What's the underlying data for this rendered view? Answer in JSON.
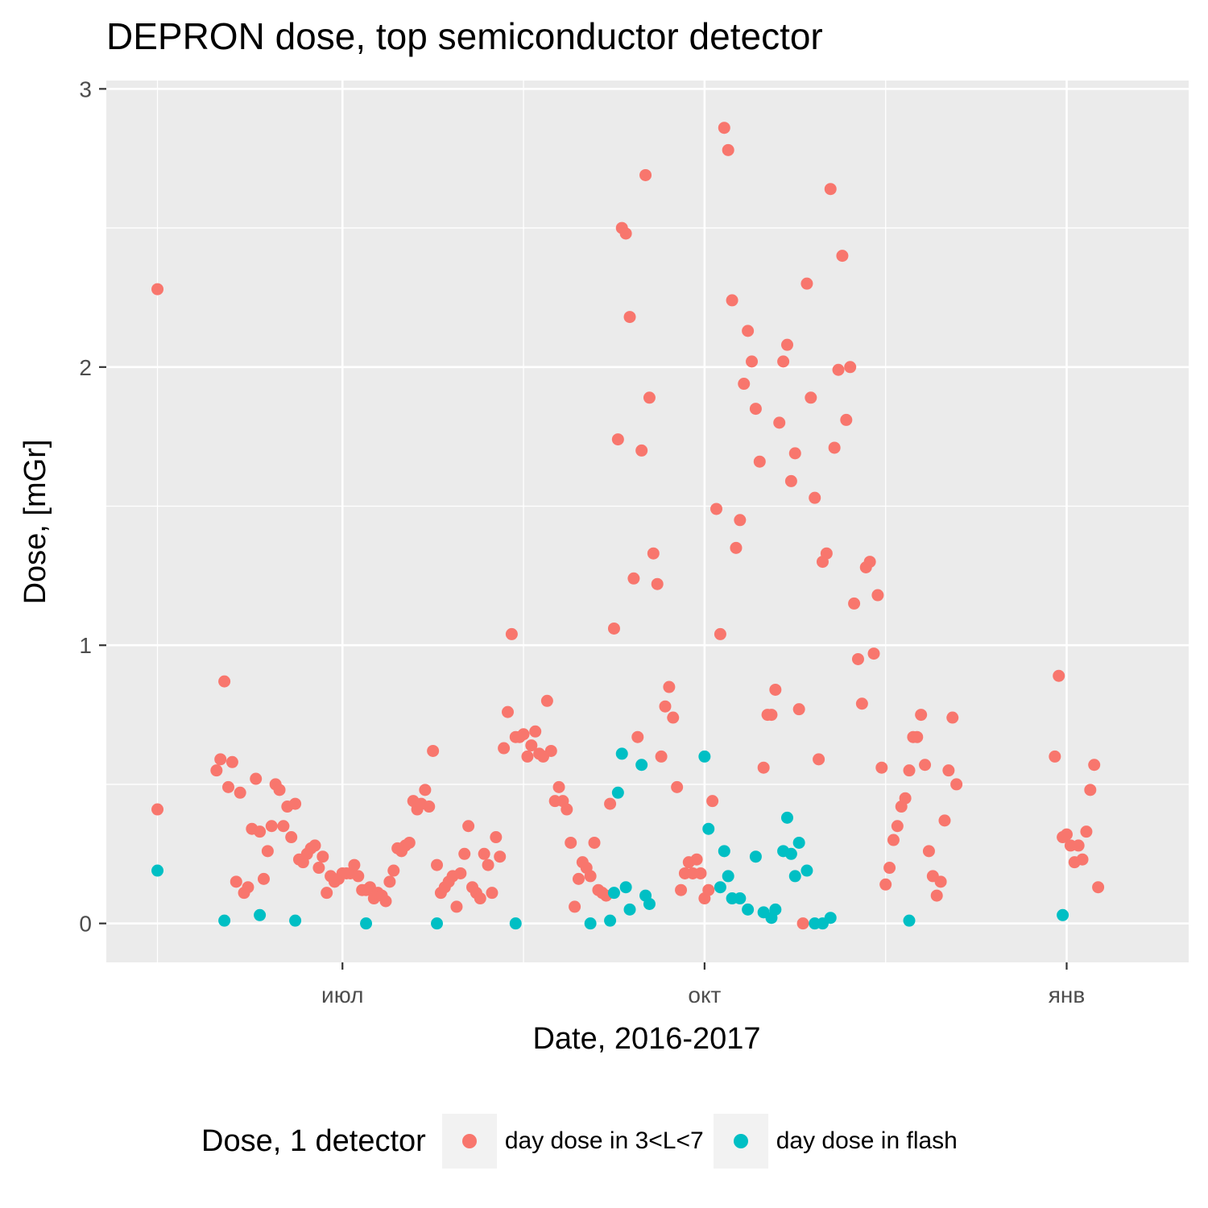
{
  "chart_data": {
    "type": "scatter",
    "title": "DEPRON dose, top semiconductor detector",
    "xlabel": "Date, 2016-2017",
    "ylabel": "Dose, [mGr]",
    "xlim": [
      "2016-05-02",
      "2017-02-01"
    ],
    "ylim": [
      -0.14,
      3.03
    ],
    "x_ticks": [
      {
        "date": "2016-07-01",
        "label": "июл"
      },
      {
        "date": "2016-10-01",
        "label": "окт"
      },
      {
        "date": "2017-01-01",
        "label": "янв"
      }
    ],
    "x_minor_ticks": [
      "2016-05-15",
      "2016-08-16",
      "2016-11-16"
    ],
    "y_ticks": [
      0,
      1,
      2,
      3
    ],
    "y_minor_ticks": [
      0.5,
      1.5,
      2.5
    ],
    "grid": true,
    "legend": {
      "title": "Dose, 1 detector",
      "position": "bottom"
    },
    "series": [
      {
        "name": "day dose in 3<L<7",
        "color": "#F8766D",
        "points": [
          [
            "2016-05-15",
            2.28
          ],
          [
            "2016-05-15",
            0.41
          ],
          [
            "2016-05-30",
            0.55
          ],
          [
            "2016-05-31",
            0.59
          ],
          [
            "2016-06-01",
            0.87
          ],
          [
            "2016-06-02",
            0.49
          ],
          [
            "2016-06-03",
            0.58
          ],
          [
            "2016-06-04",
            0.15
          ],
          [
            "2016-06-05",
            0.47
          ],
          [
            "2016-06-06",
            0.11
          ],
          [
            "2016-06-07",
            0.13
          ],
          [
            "2016-06-08",
            0.34
          ],
          [
            "2016-06-09",
            0.52
          ],
          [
            "2016-06-10",
            0.33
          ],
          [
            "2016-06-11",
            0.16
          ],
          [
            "2016-06-12",
            0.26
          ],
          [
            "2016-06-13",
            0.35
          ],
          [
            "2016-06-14",
            0.5
          ],
          [
            "2016-06-15",
            0.48
          ],
          [
            "2016-06-16",
            0.35
          ],
          [
            "2016-06-17",
            0.42
          ],
          [
            "2016-06-18",
            0.31
          ],
          [
            "2016-06-19",
            0.43
          ],
          [
            "2016-06-20",
            0.23
          ],
          [
            "2016-06-21",
            0.22
          ],
          [
            "2016-06-22",
            0.25
          ],
          [
            "2016-06-23",
            0.27
          ],
          [
            "2016-06-24",
            0.28
          ],
          [
            "2016-06-25",
            0.2
          ],
          [
            "2016-06-26",
            0.24
          ],
          [
            "2016-06-27",
            0.11
          ],
          [
            "2016-06-28",
            0.17
          ],
          [
            "2016-06-29",
            0.15
          ],
          [
            "2016-06-30",
            0.16
          ],
          [
            "2016-07-01",
            0.18
          ],
          [
            "2016-07-02",
            0.18
          ],
          [
            "2016-07-03",
            0.18
          ],
          [
            "2016-07-04",
            0.21
          ],
          [
            "2016-07-05",
            0.17
          ],
          [
            "2016-07-06",
            0.12
          ],
          [
            "2016-07-07",
            0.12
          ],
          [
            "2016-07-08",
            0.13
          ],
          [
            "2016-07-09",
            0.09
          ],
          [
            "2016-07-10",
            0.11
          ],
          [
            "2016-07-11",
            0.1
          ],
          [
            "2016-07-12",
            0.08
          ],
          [
            "2016-07-13",
            0.15
          ],
          [
            "2016-07-14",
            0.19
          ],
          [
            "2016-07-15",
            0.27
          ],
          [
            "2016-07-16",
            0.26
          ],
          [
            "2016-07-17",
            0.28
          ],
          [
            "2016-07-18",
            0.29
          ],
          [
            "2016-07-19",
            0.44
          ],
          [
            "2016-07-20",
            0.41
          ],
          [
            "2016-07-21",
            0.43
          ],
          [
            "2016-07-22",
            0.48
          ],
          [
            "2016-07-23",
            0.42
          ],
          [
            "2016-07-24",
            0.62
          ],
          [
            "2016-07-25",
            0.21
          ],
          [
            "2016-07-26",
            0.11
          ],
          [
            "2016-07-27",
            0.13
          ],
          [
            "2016-07-28",
            0.15
          ],
          [
            "2016-07-29",
            0.17
          ],
          [
            "2016-07-30",
            0.06
          ],
          [
            "2016-07-31",
            0.18
          ],
          [
            "2016-08-01",
            0.25
          ],
          [
            "2016-08-02",
            0.35
          ],
          [
            "2016-08-03",
            0.13
          ],
          [
            "2016-08-04",
            0.11
          ],
          [
            "2016-08-05",
            0.09
          ],
          [
            "2016-08-06",
            0.25
          ],
          [
            "2016-08-07",
            0.21
          ],
          [
            "2016-08-08",
            0.11
          ],
          [
            "2016-08-09",
            0.31
          ],
          [
            "2016-08-10",
            0.24
          ],
          [
            "2016-08-11",
            0.63
          ],
          [
            "2016-08-12",
            0.76
          ],
          [
            "2016-08-13",
            1.04
          ],
          [
            "2016-08-14",
            0.67
          ],
          [
            "2016-08-15",
            0.67
          ],
          [
            "2016-08-16",
            0.68
          ],
          [
            "2016-08-17",
            0.6
          ],
          [
            "2016-08-18",
            0.64
          ],
          [
            "2016-08-19",
            0.69
          ],
          [
            "2016-08-20",
            0.61
          ],
          [
            "2016-08-21",
            0.6
          ],
          [
            "2016-08-22",
            0.8
          ],
          [
            "2016-08-23",
            0.62
          ],
          [
            "2016-08-24",
            0.44
          ],
          [
            "2016-08-25",
            0.49
          ],
          [
            "2016-08-26",
            0.44
          ],
          [
            "2016-08-27",
            0.41
          ],
          [
            "2016-08-28",
            0.29
          ],
          [
            "2016-08-29",
            0.06
          ],
          [
            "2016-08-30",
            0.16
          ],
          [
            "2016-08-31",
            0.22
          ],
          [
            "2016-09-01",
            0.2
          ],
          [
            "2016-09-02",
            0.17
          ],
          [
            "2016-09-03",
            0.29
          ],
          [
            "2016-09-04",
            0.12
          ],
          [
            "2016-09-05",
            0.11
          ],
          [
            "2016-09-06",
            0.1
          ],
          [
            "2016-09-07",
            0.43
          ],
          [
            "2016-09-08",
            1.06
          ],
          [
            "2016-09-09",
            1.74
          ],
          [
            "2016-09-10",
            2.5
          ],
          [
            "2016-09-11",
            2.48
          ],
          [
            "2016-09-12",
            2.18
          ],
          [
            "2016-09-13",
            1.24
          ],
          [
            "2016-09-14",
            0.67
          ],
          [
            "2016-09-15",
            1.7
          ],
          [
            "2016-09-16",
            2.69
          ],
          [
            "2016-09-17",
            1.89
          ],
          [
            "2016-09-18",
            1.33
          ],
          [
            "2016-09-19",
            1.22
          ],
          [
            "2016-09-20",
            0.6
          ],
          [
            "2016-09-21",
            0.78
          ],
          [
            "2016-09-22",
            0.85
          ],
          [
            "2016-09-23",
            0.74
          ],
          [
            "2016-09-24",
            0.49
          ],
          [
            "2016-09-25",
            0.12
          ],
          [
            "2016-09-26",
            0.18
          ],
          [
            "2016-09-27",
            0.22
          ],
          [
            "2016-09-28",
            0.18
          ],
          [
            "2016-09-29",
            0.23
          ],
          [
            "2016-09-30",
            0.18
          ],
          [
            "2016-10-01",
            0.09
          ],
          [
            "2016-10-02",
            0.12
          ],
          [
            "2016-10-03",
            0.44
          ],
          [
            "2016-10-04",
            1.49
          ],
          [
            "2016-10-05",
            1.04
          ],
          [
            "2016-10-06",
            2.86
          ],
          [
            "2016-10-07",
            2.78
          ],
          [
            "2016-10-08",
            2.24
          ],
          [
            "2016-10-09",
            1.35
          ],
          [
            "2016-10-10",
            1.45
          ],
          [
            "2016-10-11",
            1.94
          ],
          [
            "2016-10-12",
            2.13
          ],
          [
            "2016-10-13",
            2.02
          ],
          [
            "2016-10-14",
            1.85
          ],
          [
            "2016-10-15",
            1.66
          ],
          [
            "2016-10-16",
            0.56
          ],
          [
            "2016-10-17",
            0.75
          ],
          [
            "2016-10-18",
            0.75
          ],
          [
            "2016-10-19",
            0.84
          ],
          [
            "2016-10-20",
            1.8
          ],
          [
            "2016-10-21",
            2.02
          ],
          [
            "2016-10-22",
            2.08
          ],
          [
            "2016-10-23",
            1.59
          ],
          [
            "2016-10-24",
            1.69
          ],
          [
            "2016-10-25",
            0.77
          ],
          [
            "2016-10-26",
            0.0
          ],
          [
            "2016-10-27",
            2.3
          ],
          [
            "2016-10-28",
            1.89
          ],
          [
            "2016-10-29",
            1.53
          ],
          [
            "2016-10-30",
            0.59
          ],
          [
            "2016-10-31",
            1.3
          ],
          [
            "2016-11-01",
            1.33
          ],
          [
            "2016-11-02",
            2.64
          ],
          [
            "2016-11-03",
            1.71
          ],
          [
            "2016-11-04",
            1.99
          ],
          [
            "2016-11-05",
            2.4
          ],
          [
            "2016-11-06",
            1.81
          ],
          [
            "2016-11-07",
            2.0
          ],
          [
            "2016-11-08",
            1.15
          ],
          [
            "2016-11-09",
            0.95
          ],
          [
            "2016-11-10",
            0.79
          ],
          [
            "2016-11-11",
            1.28
          ],
          [
            "2016-11-12",
            1.3
          ],
          [
            "2016-11-13",
            0.97
          ],
          [
            "2016-11-14",
            1.18
          ],
          [
            "2016-11-15",
            0.56
          ],
          [
            "2016-11-16",
            0.14
          ],
          [
            "2016-11-17",
            0.2
          ],
          [
            "2016-11-18",
            0.3
          ],
          [
            "2016-11-19",
            0.35
          ],
          [
            "2016-11-20",
            0.42
          ],
          [
            "2016-11-21",
            0.45
          ],
          [
            "2016-11-22",
            0.55
          ],
          [
            "2016-11-23",
            0.67
          ],
          [
            "2016-11-24",
            0.67
          ],
          [
            "2016-11-25",
            0.75
          ],
          [
            "2016-11-26",
            0.57
          ],
          [
            "2016-11-27",
            0.26
          ],
          [
            "2016-11-28",
            0.17
          ],
          [
            "2016-11-29",
            0.1
          ],
          [
            "2016-11-30",
            0.15
          ],
          [
            "2016-12-01",
            0.37
          ],
          [
            "2016-12-02",
            0.55
          ],
          [
            "2016-12-03",
            0.74
          ],
          [
            "2016-12-04",
            0.5
          ],
          [
            "2016-12-29",
            0.6
          ],
          [
            "2016-12-30",
            0.89
          ],
          [
            "2016-12-31",
            0.31
          ],
          [
            "2017-01-01",
            0.32
          ],
          [
            "2017-01-02",
            0.28
          ],
          [
            "2017-01-03",
            0.22
          ],
          [
            "2017-01-04",
            0.28
          ],
          [
            "2017-01-05",
            0.23
          ],
          [
            "2017-01-06",
            0.33
          ],
          [
            "2017-01-07",
            0.48
          ],
          [
            "2017-01-08",
            0.57
          ],
          [
            "2017-01-09",
            0.13
          ]
        ]
      },
      {
        "name": "day dose in flash",
        "color": "#00BFC4",
        "points": [
          [
            "2016-05-15",
            0.19
          ],
          [
            "2016-06-01",
            0.01
          ],
          [
            "2016-06-10",
            0.03
          ],
          [
            "2016-06-19",
            0.01
          ],
          [
            "2016-07-07",
            0.0
          ],
          [
            "2016-07-25",
            0.0
          ],
          [
            "2016-08-14",
            0.0
          ],
          [
            "2016-09-02",
            0.0
          ],
          [
            "2016-09-07",
            0.01
          ],
          [
            "2016-09-08",
            0.11
          ],
          [
            "2016-09-09",
            0.47
          ],
          [
            "2016-09-10",
            0.61
          ],
          [
            "2016-09-11",
            0.13
          ],
          [
            "2016-09-12",
            0.05
          ],
          [
            "2016-09-15",
            0.57
          ],
          [
            "2016-09-16",
            0.1
          ],
          [
            "2016-09-17",
            0.07
          ],
          [
            "2016-10-01",
            0.6
          ],
          [
            "2016-10-02",
            0.34
          ],
          [
            "2016-10-05",
            0.13
          ],
          [
            "2016-10-06",
            0.26
          ],
          [
            "2016-10-07",
            0.17
          ],
          [
            "2016-10-08",
            0.09
          ],
          [
            "2016-10-10",
            0.09
          ],
          [
            "2016-10-12",
            0.05
          ],
          [
            "2016-10-14",
            0.24
          ],
          [
            "2016-10-16",
            0.04
          ],
          [
            "2016-10-18",
            0.02
          ],
          [
            "2016-10-19",
            0.05
          ],
          [
            "2016-10-21",
            0.26
          ],
          [
            "2016-10-22",
            0.38
          ],
          [
            "2016-10-23",
            0.25
          ],
          [
            "2016-10-24",
            0.17
          ],
          [
            "2016-10-25",
            0.29
          ],
          [
            "2016-10-27",
            0.19
          ],
          [
            "2016-10-29",
            0.0
          ],
          [
            "2016-10-31",
            0.0
          ],
          [
            "2016-11-02",
            0.02
          ],
          [
            "2016-11-22",
            0.01
          ],
          [
            "2016-12-31",
            0.03
          ]
        ]
      }
    ]
  },
  "legend_labels": [
    "day dose in 3<L<7",
    "day dose in flash"
  ]
}
